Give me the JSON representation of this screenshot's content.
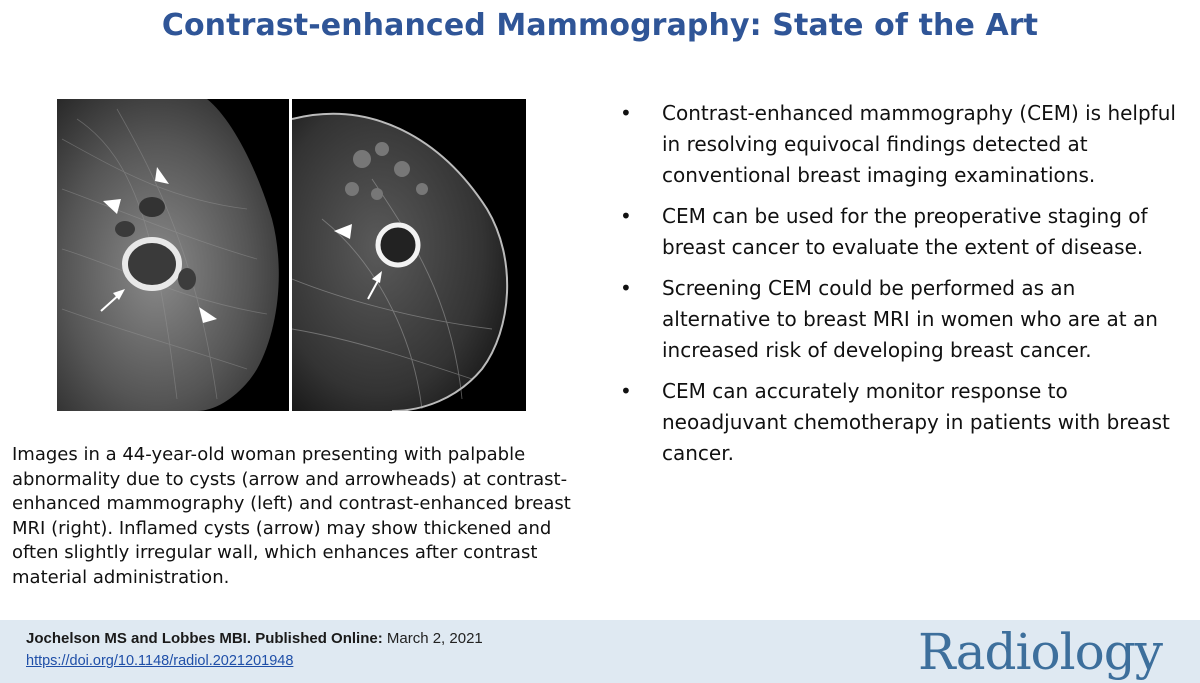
{
  "slide": {
    "title": "Contrast-enhanced Mammography: State of the Art",
    "bullets": [
      "Contrast-enhanced mammography (CEM) is helpful in resolving equivocal findings detected at conventional breast imaging examinations.",
      "CEM can be used for the preoperative staging of breast cancer to evaluate the extent of disease.",
      "Screening CEM could be performed as an alternative to breast MRI in women who are at an increased risk of developing breast cancer.",
      "CEM can accurately monitor response to neoadjuvant chemotherapy in patients with breast cancer."
    ],
    "bullet_symbol": "•",
    "caption": "Images in a 44-year-old woman presenting with palpable abnormality due to cysts (arrow and arrowheads) at contrast-enhanced mammography (left) and contrast-enhanced breast MRI (right). Inflamed cysts (arrow) may show thickened and often slightly irregular wall, which enhances after contrast material administration."
  },
  "images": {
    "left": {
      "icon": "mammogram-image"
    },
    "right": {
      "icon": "breast-mri-image"
    }
  },
  "footer": {
    "citation_bold": "Jochelson MS and Lobbes MBI. Published Online:",
    "citation_date": " March 2, 2021",
    "doi": "https://doi.org/10.1148/radiol.2021201948",
    "logo": "Radiology"
  },
  "colors": {
    "title": "#2f5597",
    "footer_bg": "#dfe9f2",
    "link": "#1f4fa8",
    "logo": "#3d6f9c"
  }
}
